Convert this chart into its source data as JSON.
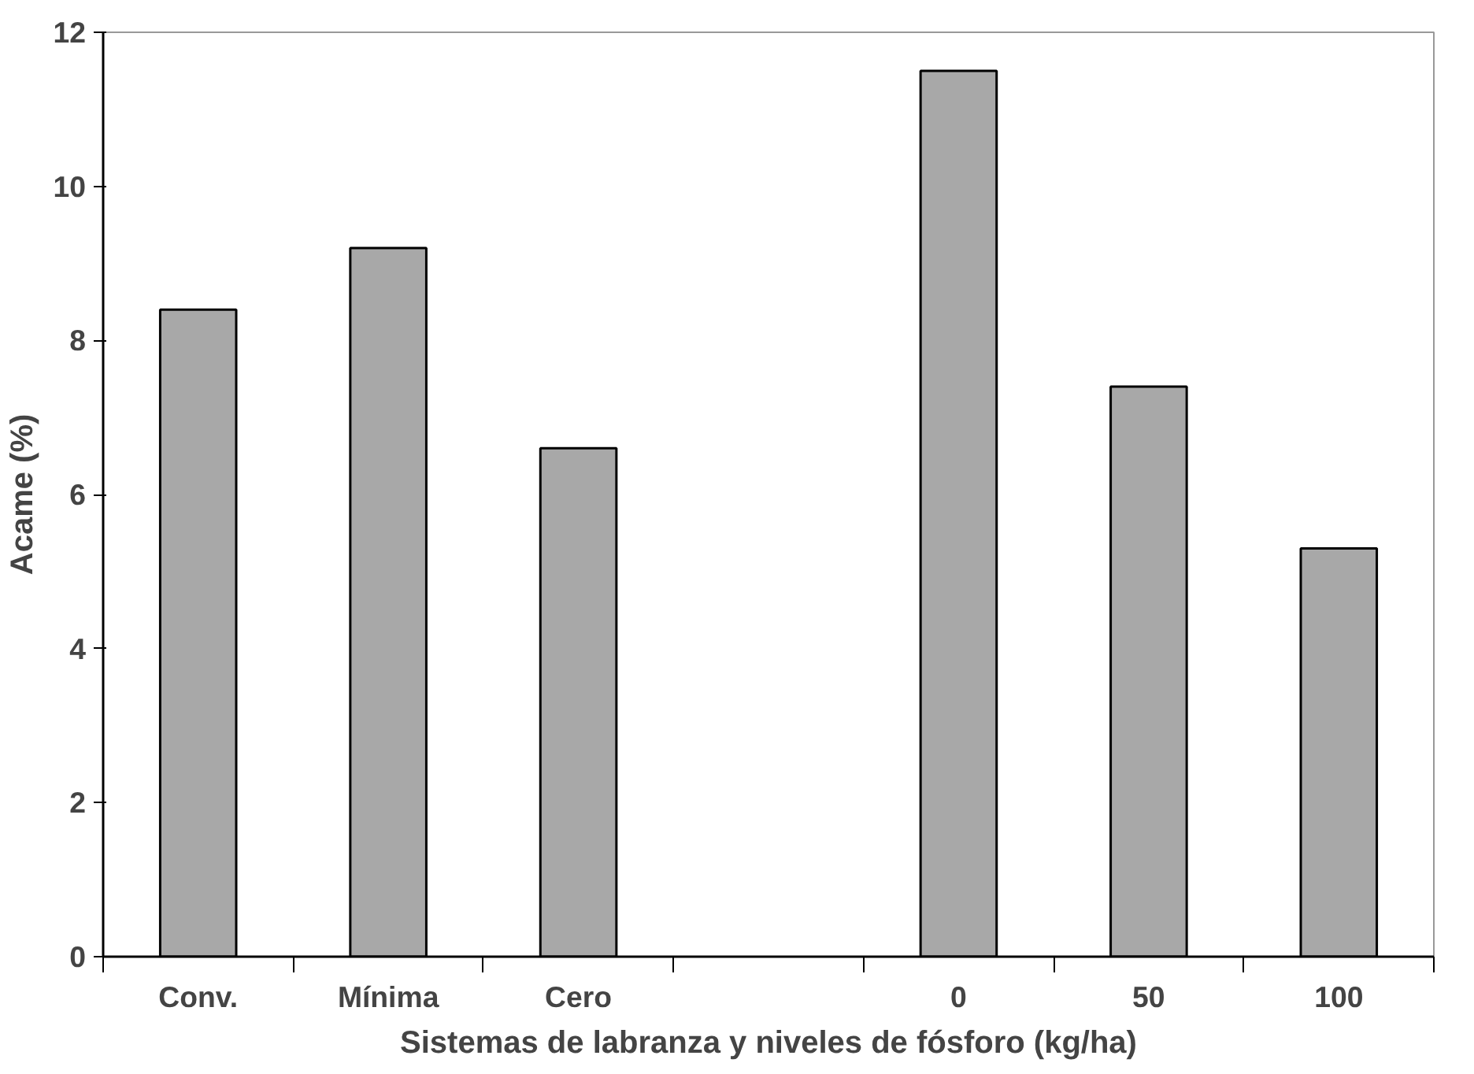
{
  "chart_data": {
    "type": "bar",
    "xlabel": "Sistemas de labranza y niveles de fósforo (kg/ha)",
    "ylabel": "Acame (%)",
    "categories": [
      "Conv.",
      "Mínima",
      "Cero",
      null,
      "0",
      "50",
      "100"
    ],
    "values": [
      8.4,
      9.2,
      6.6,
      null,
      11.5,
      7.4,
      5.3
    ],
    "color": "#a8a8a8",
    "ylim": [
      0,
      12
    ],
    "yticks": [
      0,
      2,
      4,
      6,
      8,
      10,
      12
    ],
    "grid": false
  }
}
